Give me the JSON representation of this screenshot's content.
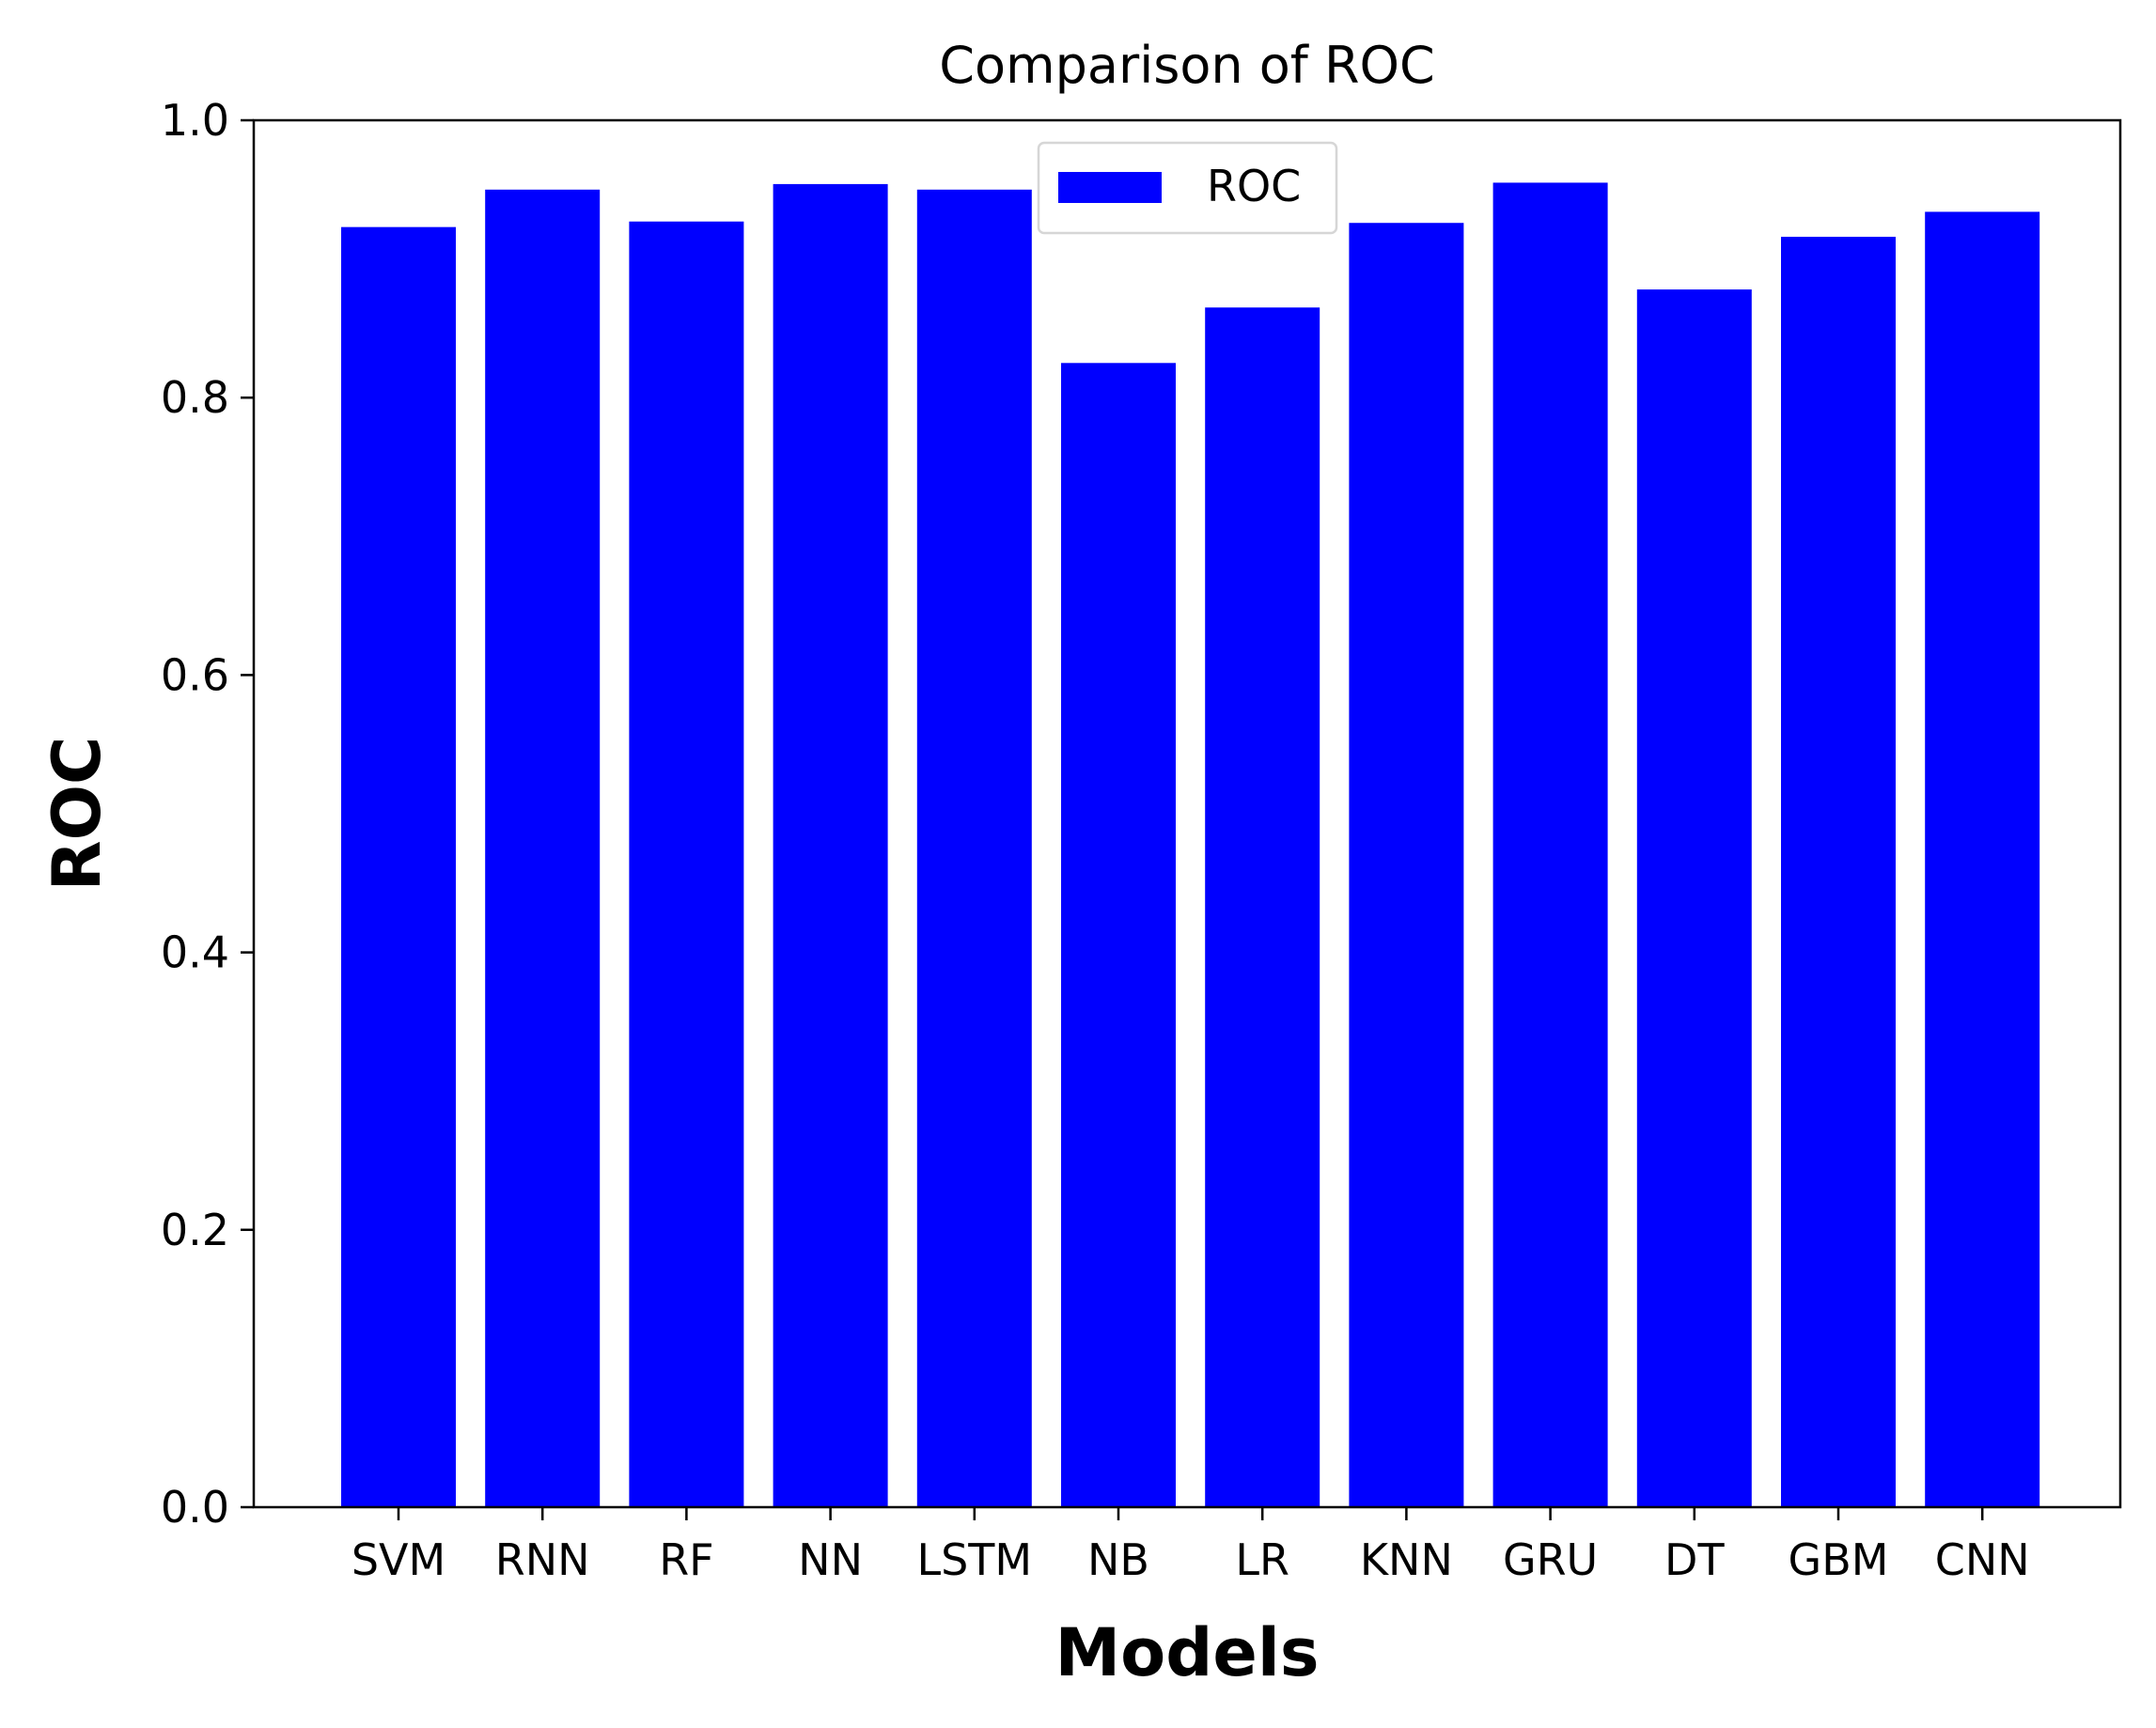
{
  "chart_data": {
    "type": "bar",
    "title": "Comparison of ROC",
    "xlabel": "Models",
    "ylabel": "ROC",
    "categories": [
      "SVM",
      "RNN",
      "RF",
      "NN",
      "LSTM",
      "NB",
      "LR",
      "KNN",
      "GRU",
      "DT",
      "GBM",
      "CNN"
    ],
    "series": [
      {
        "name": "ROC",
        "color": "#0000ff",
        "values": [
          0.923,
          0.95,
          0.927,
          0.954,
          0.95,
          0.825,
          0.865,
          0.926,
          0.955,
          0.878,
          0.916,
          0.934
        ]
      }
    ],
    "ylim": [
      0.0,
      1.0
    ],
    "yticks": [
      "0.0",
      "0.2",
      "0.4",
      "0.6",
      "0.8",
      "1.0"
    ],
    "grid": false,
    "legend_position": "upper-center"
  }
}
